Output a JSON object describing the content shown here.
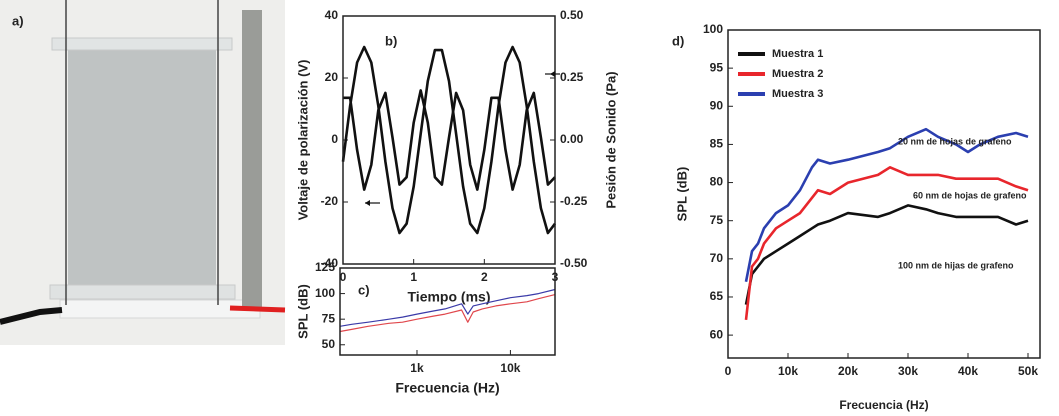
{
  "photo": {
    "label": "a)"
  },
  "chart_data": [
    {
      "type": "line",
      "panel_label": "b)",
      "x_label": "Tiempo (ms)",
      "y_label": "Voltaje de polarización (V)",
      "y2_label": "Pesión de Sonido (Pa)",
      "x": [
        0,
        0.1,
        0.2,
        0.3,
        0.4,
        0.5,
        0.6,
        0.7,
        0.8,
        0.9,
        1.0,
        1.1,
        1.2,
        1.3,
        1.4,
        1.5,
        1.6,
        1.7,
        1.8,
        1.9,
        2.0,
        2.1,
        2.2,
        2.3,
        2.4,
        2.5,
        2.6,
        2.7,
        2.8,
        2.9,
        3.0
      ],
      "series": [
        {
          "color": "#111111",
          "values": [
            -7,
            11,
            25,
            30,
            25,
            11,
            -7,
            -22,
            -30,
            -27,
            -15,
            2,
            19,
            29,
            29,
            19,
            2,
            -15,
            -27,
            -30,
            -22,
            -7,
            11,
            25,
            30,
            25,
            11,
            -7,
            -22,
            -30,
            -27
          ]
        },
        {
          "color": "#111111",
          "axis": "y2",
          "values": [
            0.17,
            0.17,
            -0.04,
            -0.2,
            -0.1,
            0.12,
            0.19,
            0.01,
            -0.18,
            -0.15,
            0.07,
            0.2,
            0.07,
            -0.15,
            -0.18,
            0.01,
            0.19,
            0.12,
            -0.1,
            -0.2,
            -0.04,
            0.17,
            0.17,
            -0.04,
            -0.2,
            -0.1,
            0.12,
            0.19,
            0.01,
            -0.18,
            -0.15
          ]
        }
      ],
      "xlim": [
        0,
        3
      ],
      "xticks": [
        0,
        1,
        2,
        3
      ],
      "ylim": [
        -40,
        40
      ],
      "yticks": [
        -40,
        -20,
        0,
        20,
        40
      ],
      "y2lim": [
        -0.5,
        0.5
      ],
      "y2ticks": [
        {
          "value": -0.5,
          "label": "-0.50"
        },
        {
          "value": -0.25,
          "label": "-0.25"
        },
        {
          "value": 0,
          "label": "0.00"
        },
        {
          "value": 0.25,
          "label": "0.25"
        },
        {
          "value": 0.5,
          "label": "0.50"
        }
      ]
    },
    {
      "type": "line",
      "panel_label": "c)",
      "x_label": "Frecuencia (Hz)",
      "y_label": "SPL (dB)",
      "x_scale": "log",
      "x": [
        150,
        200,
        300,
        500,
        700,
        1000,
        1500,
        2000,
        3000,
        3500,
        4000,
        5000,
        7000,
        10000,
        15000,
        20000,
        30000
      ],
      "series": [
        {
          "color": "#3a3aa8",
          "values": [
            68,
            70,
            72,
            75,
            77,
            80,
            83,
            85,
            90,
            80,
            88,
            90,
            93,
            96,
            98,
            100,
            104
          ]
        },
        {
          "color": "#e0474c",
          "values": [
            63,
            65,
            68,
            71,
            72,
            75,
            78,
            80,
            84,
            72,
            82,
            85,
            88,
            90,
            92,
            95,
            99
          ]
        }
      ],
      "xlim": [
        150,
        30000
      ],
      "xticks": [
        {
          "value": 1000,
          "label": "1k"
        },
        {
          "value": 10000,
          "label": "10k"
        }
      ],
      "ylim": [
        40,
        125
      ],
      "yticks": [
        50,
        75,
        100,
        125
      ]
    },
    {
      "type": "line",
      "panel_label": "d)",
      "x_label": "Frecuencia (Hz)",
      "y_label": "SPL (dB)",
      "legend": "upper left",
      "x": [
        3000,
        4000,
        5000,
        6000,
        8000,
        10000,
        12000,
        14000,
        15000,
        17000,
        20000,
        25000,
        27000,
        30000,
        33000,
        35000,
        38000,
        40000,
        42000,
        45000,
        48000,
        50000
      ],
      "series": [
        {
          "name": "Muestra 1",
          "color": "#111111",
          "values": [
            64,
            68,
            69,
            70,
            71,
            72,
            73,
            74,
            74.5,
            75,
            76,
            75.5,
            76,
            77,
            76.5,
            76,
            75.5,
            75.5,
            75.5,
            75.5,
            74.5,
            75
          ]
        },
        {
          "name": "Muestra 2",
          "color": "#e8262c",
          "values": [
            62,
            69,
            70,
            72,
            74,
            75,
            76,
            78,
            79,
            78.5,
            80,
            81,
            82,
            81,
            81,
            81,
            80.5,
            80.5,
            80.5,
            80.5,
            79.5,
            79
          ]
        },
        {
          "name": "Muestra 3",
          "color": "#2b3fb0",
          "values": [
            67,
            71,
            72,
            74,
            76,
            77,
            79,
            82,
            83,
            82.5,
            83,
            84,
            84.5,
            86,
            87,
            86,
            85,
            84,
            85,
            86,
            86.5,
            86
          ]
        }
      ],
      "xlim": [
        0,
        52000
      ],
      "xticks": [
        {
          "value": 0,
          "label": "0"
        },
        {
          "value": 10000,
          "label": "10k"
        },
        {
          "value": 20000,
          "label": "20k"
        },
        {
          "value": 30000,
          "label": "30k"
        },
        {
          "value": 40000,
          "label": "40k"
        },
        {
          "value": 50000,
          "label": "50k"
        }
      ],
      "ylim": [
        57,
        100
      ],
      "yticks": [
        60,
        65,
        70,
        75,
        80,
        85,
        90,
        95,
        100
      ],
      "annotations": [
        "20 nm de hojas de grafeno",
        "60 nm de hojas de grafeno",
        "100 nm de hijas de grafeno"
      ]
    }
  ]
}
